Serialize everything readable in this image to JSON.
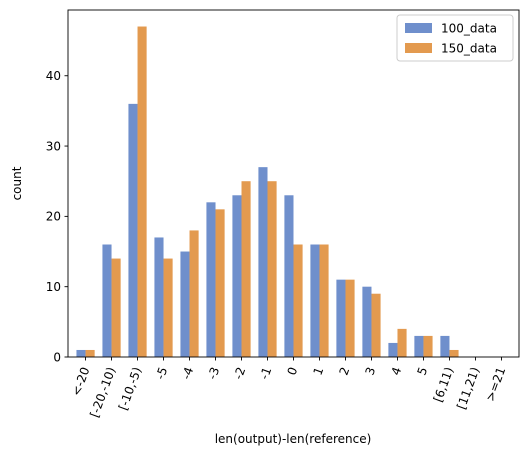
{
  "chart_data": {
    "type": "bar",
    "title": "",
    "xlabel": "len(output)-len(reference)",
    "ylabel": "count",
    "ylim": [
      0,
      49.35
    ],
    "yticks": [
      0,
      10,
      20,
      30,
      40
    ],
    "grid": false,
    "legend_position": "top-right",
    "categories": [
      "<-20",
      "[-20,-10)",
      "[-10,-5)",
      "-5",
      "-4",
      "-3",
      "-2",
      "-1",
      "0",
      "1",
      "2",
      "3",
      "4",
      "5",
      "[6,11)",
      "[11,21)",
      ">=21"
    ],
    "series": [
      {
        "name": "100_data",
        "color": "#6f8fcc",
        "values": [
          1,
          16,
          36,
          17,
          15,
          22,
          23,
          27,
          23,
          16,
          11,
          10,
          2,
          3,
          3,
          0,
          0
        ]
      },
      {
        "name": "150_data",
        "color": "#e39a4f",
        "values": [
          1,
          14,
          47,
          14,
          18,
          21,
          25,
          25,
          16,
          16,
          11,
          9,
          4,
          3,
          1,
          0,
          0
        ]
      }
    ]
  }
}
